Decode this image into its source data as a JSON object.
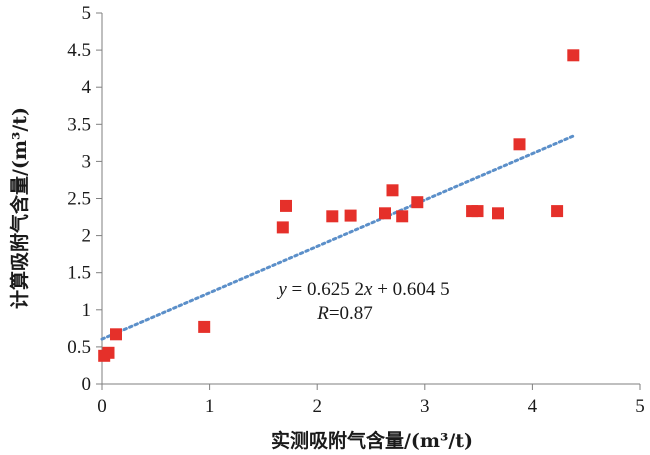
{
  "chart_data": {
    "type": "scatter",
    "xlabel": "实测吸附气含量/(m³/t)",
    "ylabel": "计算吸附气含量/(m³/t)",
    "xlim": [
      0,
      5
    ],
    "ylim": [
      0,
      5
    ],
    "x_ticks": [
      0,
      1,
      2,
      3,
      4,
      5
    ],
    "y_ticks": [
      0,
      0.5,
      1,
      1.5,
      2,
      2.5,
      3,
      3.5,
      4,
      4.5,
      5
    ],
    "grid": false,
    "legend": "none",
    "marker": "square",
    "marker_color": "#e5302a",
    "trendline_color": "#5b8fc9",
    "points": [
      {
        "x": 0.02,
        "y": 0.38
      },
      {
        "x": 0.06,
        "y": 0.42
      },
      {
        "x": 0.13,
        "y": 0.67
      },
      {
        "x": 0.95,
        "y": 0.77
      },
      {
        "x": 1.68,
        "y": 2.11
      },
      {
        "x": 1.71,
        "y": 2.4
      },
      {
        "x": 2.14,
        "y": 2.26
      },
      {
        "x": 2.31,
        "y": 2.27
      },
      {
        "x": 2.63,
        "y": 2.3
      },
      {
        "x": 2.7,
        "y": 2.61
      },
      {
        "x": 2.79,
        "y": 2.26
      },
      {
        "x": 2.93,
        "y": 2.45
      },
      {
        "x": 3.44,
        "y": 2.33
      },
      {
        "x": 3.49,
        "y": 2.33
      },
      {
        "x": 3.68,
        "y": 2.3
      },
      {
        "x": 3.88,
        "y": 3.23
      },
      {
        "x": 4.23,
        "y": 2.33
      },
      {
        "x": 4.38,
        "y": 4.43
      }
    ],
    "trendline": {
      "slope": 0.6252,
      "intercept": 0.6045,
      "x_range": [
        0,
        4.38
      ]
    },
    "annotations": {
      "equation": "y = 0.625 2x + 0.604 5",
      "r_value": "R=0.87"
    }
  }
}
